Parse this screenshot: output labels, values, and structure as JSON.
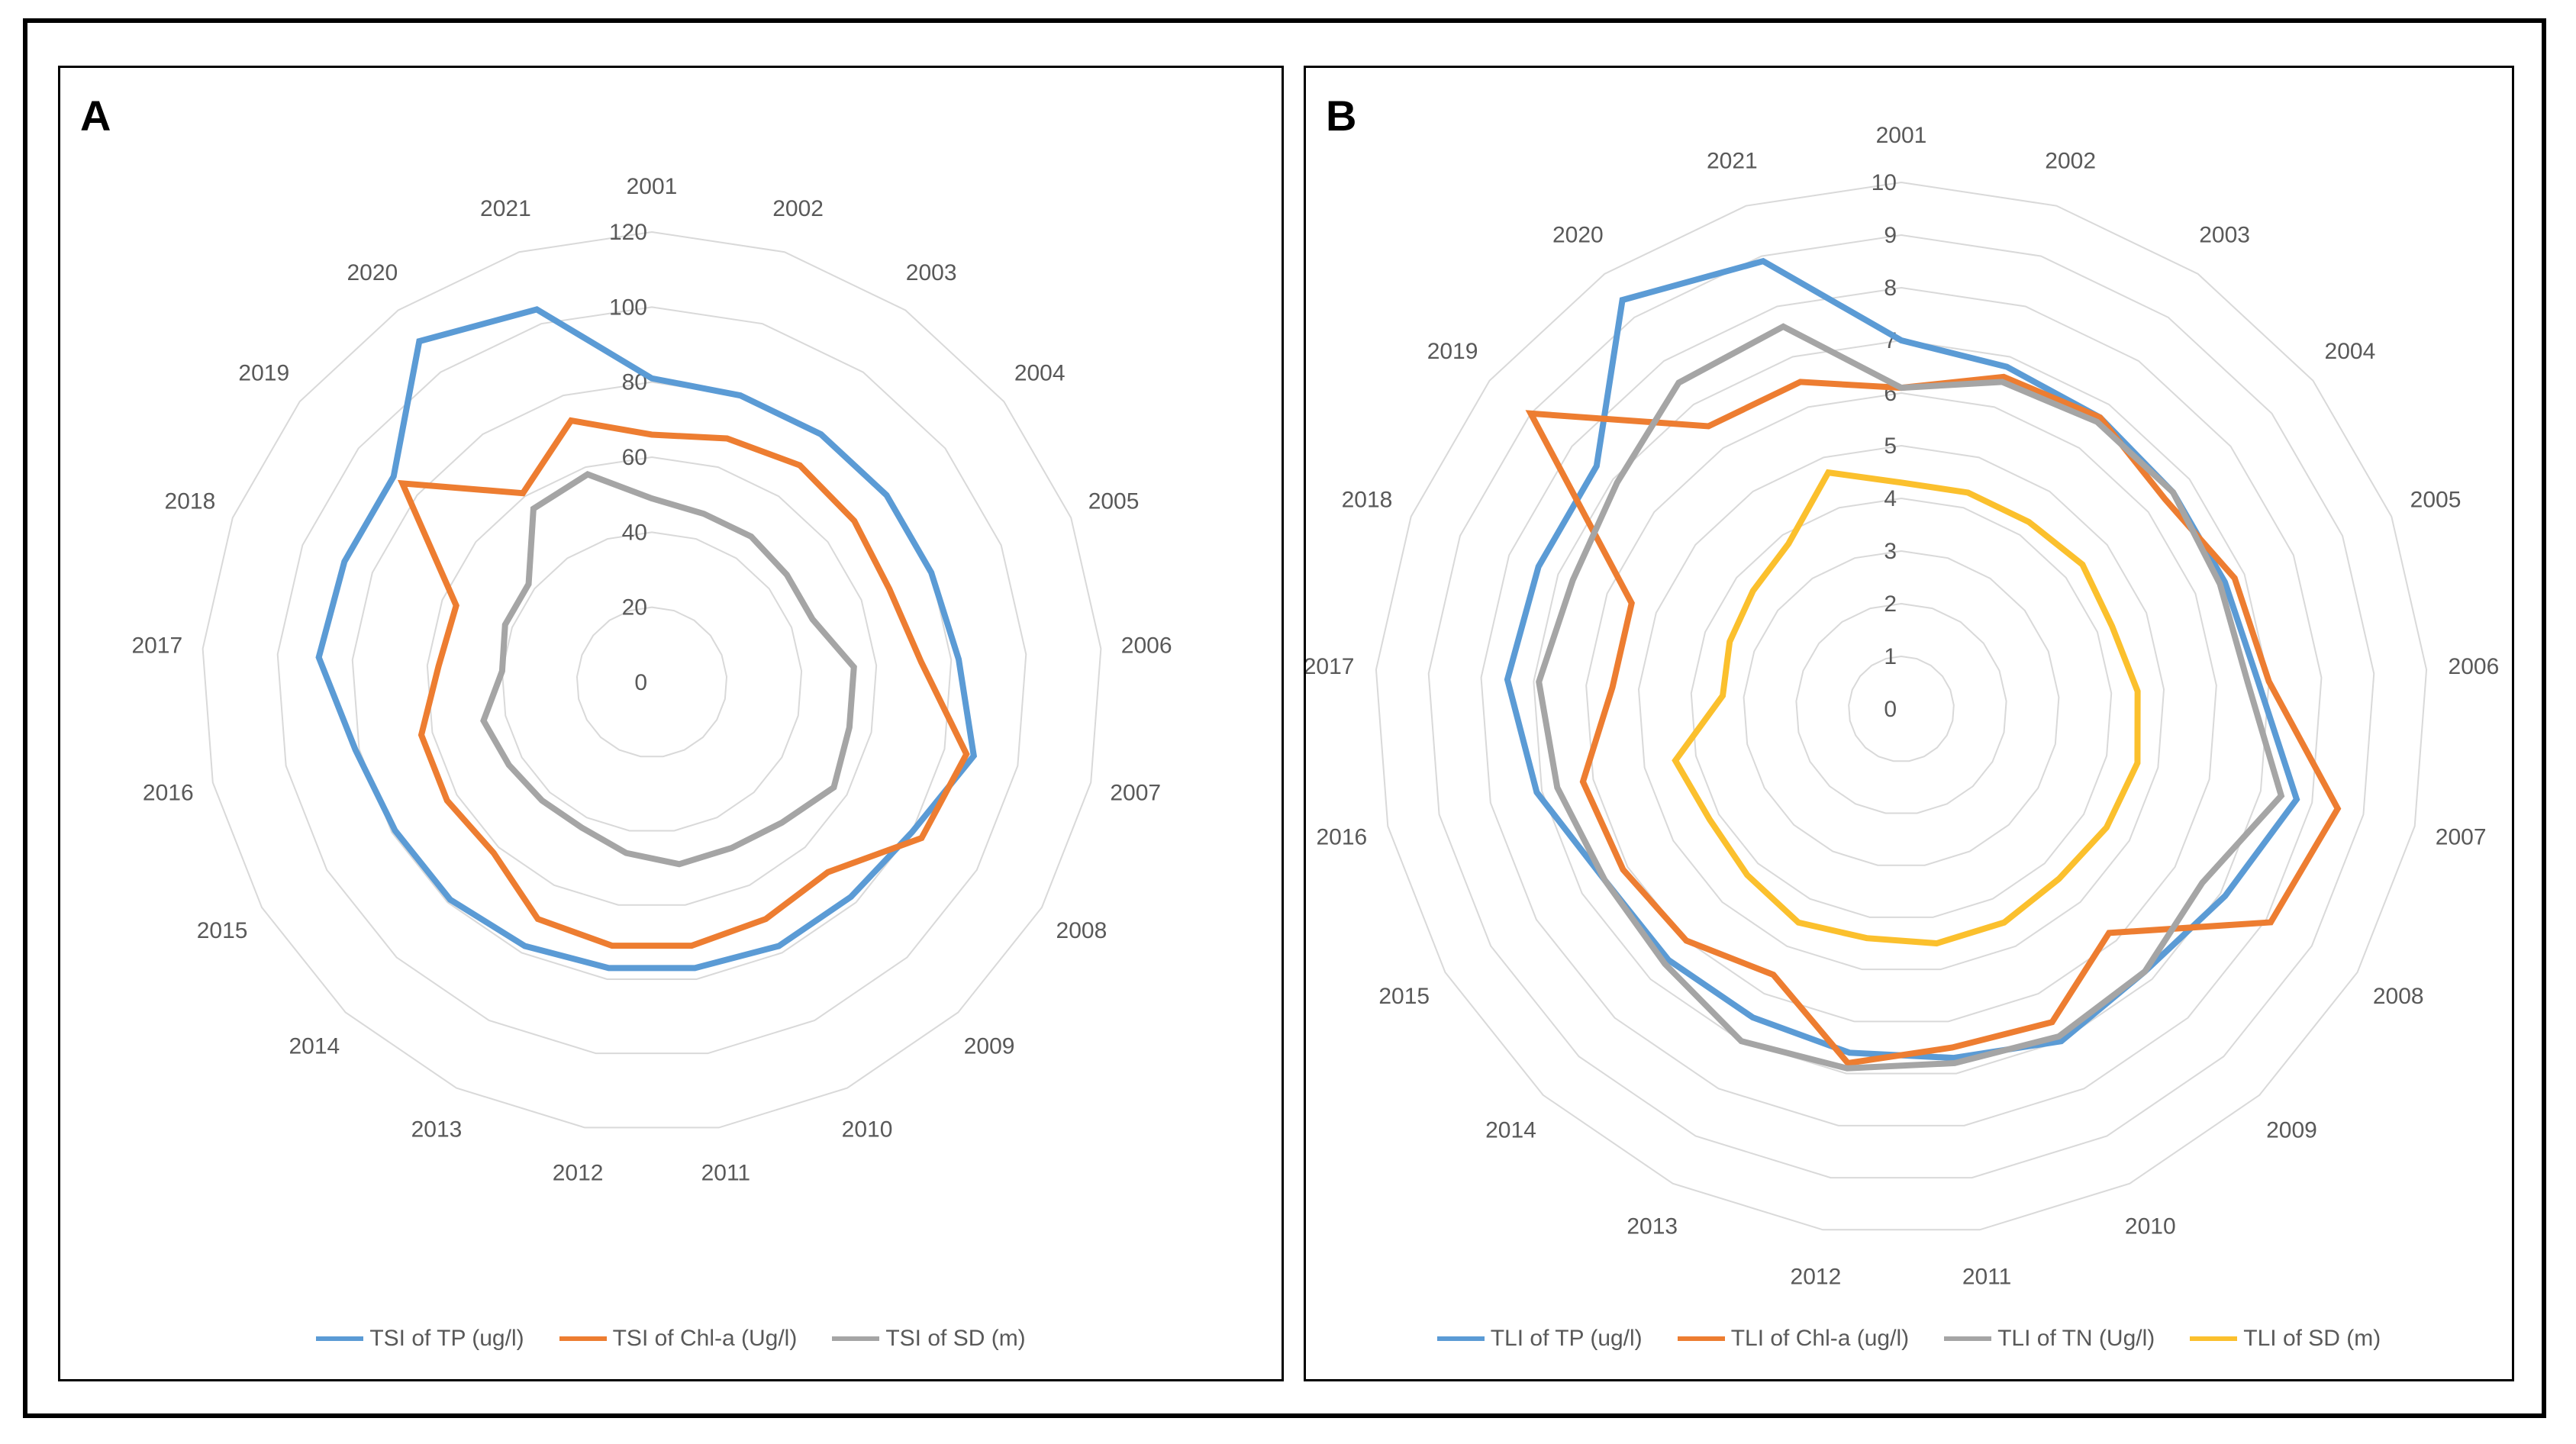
{
  "chart_data": [
    {
      "type": "radar",
      "panel_label": "A",
      "categories": [
        "2001",
        "2002",
        "2003",
        "2004",
        "2005",
        "2006",
        "2007",
        "2008",
        "2009",
        "2010",
        "2011",
        "2012",
        "2013",
        "2014",
        "2015",
        "2016",
        "2017",
        "2018",
        "2019",
        "2020",
        "2021"
      ],
      "r_range": [
        0,
        120
      ],
      "ticks": [
        "0",
        "20",
        "40",
        "60",
        "80",
        "100",
        "120"
      ],
      "tick_values": [
        0,
        20,
        40,
        60,
        80,
        100,
        120
      ],
      "legend_position": "bottom",
      "series": [
        {
          "name": "TSI of TP (ug/l)",
          "color": "#5b9bd5",
          "values": [
            81,
            80,
            80,
            80,
            80,
            82,
            88,
            80,
            78,
            78,
            77,
            77,
            78,
            79,
            79,
            81,
            89,
            88,
            88,
            110,
            104
          ]
        },
        {
          "name": "TSI of Chl-a (Ug/l)",
          "color": "#ed7d31",
          "values": [
            66,
            68,
            70,
            69,
            68,
            72,
            86,
            83,
            69,
            70,
            71,
            71,
            70,
            62,
            63,
            63,
            57,
            56,
            85,
            61,
            73
          ]
        },
        {
          "name": "TSI of SD (m)",
          "color": "#a5a5a5",
          "values": [
            49,
            47,
            47,
            46,
            46,
            54,
            54,
            56,
            51,
            49,
            49,
            46,
            43,
            43,
            44,
            46,
            40,
            42,
            42,
            56,
            58
          ]
        }
      ]
    },
    {
      "type": "radar",
      "panel_label": "B",
      "categories": [
        "2001",
        "2002",
        "2003",
        "2004",
        "2005",
        "2006",
        "2007",
        "2008",
        "2009",
        "2010",
        "2011",
        "2012",
        "2013",
        "2014",
        "2015",
        "2016",
        "2017",
        "2018",
        "2019",
        "2020",
        "2021"
      ],
      "r_range": [
        0,
        10
      ],
      "ticks": [
        "0",
        "1",
        "2",
        "3",
        "4",
        "5",
        "6",
        "7",
        "8",
        "9",
        "10"
      ],
      "tick_values": [
        0,
        1,
        2,
        3,
        4,
        5,
        6,
        7,
        8,
        9,
        10
      ],
      "legend_position": "bottom",
      "series": [
        {
          "name": "TLI of TP (ug/l)",
          "color": "#5b9bd5",
          "values": [
            7.0,
            6.8,
            6.7,
            6.6,
            6.6,
            6.8,
            7.7,
            7.1,
            6.8,
            7.0,
            6.7,
            6.6,
            6.5,
            6.5,
            6.5,
            7.1,
            7.5,
            7.4,
            7.4,
            9.4,
            8.9
          ]
        },
        {
          "name": "TLI of Chl-a (ug/l)",
          "color": "#ed7d31",
          "values": [
            6.1,
            6.6,
            6.7,
            6.4,
            6.8,
            7.0,
            8.5,
            8.1,
            5.8,
            6.6,
            6.5,
            6.8,
            5.6,
            6.0,
            6.1,
            6.2,
            5.5,
            5.5,
            9.0,
            6.5,
            6.5
          ]
        },
        {
          "name": "TLI of TN (Ug/l)",
          "color": "#a5a5a5",
          "values": [
            6.1,
            6.5,
            6.6,
            6.6,
            6.5,
            6.6,
            7.4,
            6.6,
            6.8,
            6.9,
            6.8,
            6.9,
            7.0,
            6.6,
            6.5,
            6.7,
            6.9,
            6.7,
            6.9,
            7.5,
            7.6
          ]
        },
        {
          "name": "TLI of SD (m)",
          "color": "#fbc02d",
          "values": [
            4.3,
            4.3,
            4.3,
            4.4,
            4.3,
            4.5,
            4.6,
            4.5,
            4.4,
            4.5,
            4.5,
            4.4,
            4.5,
            4.3,
            4.2,
            4.4,
            3.4,
            3.5,
            3.6,
            3.8,
            4.7
          ]
        }
      ]
    }
  ]
}
